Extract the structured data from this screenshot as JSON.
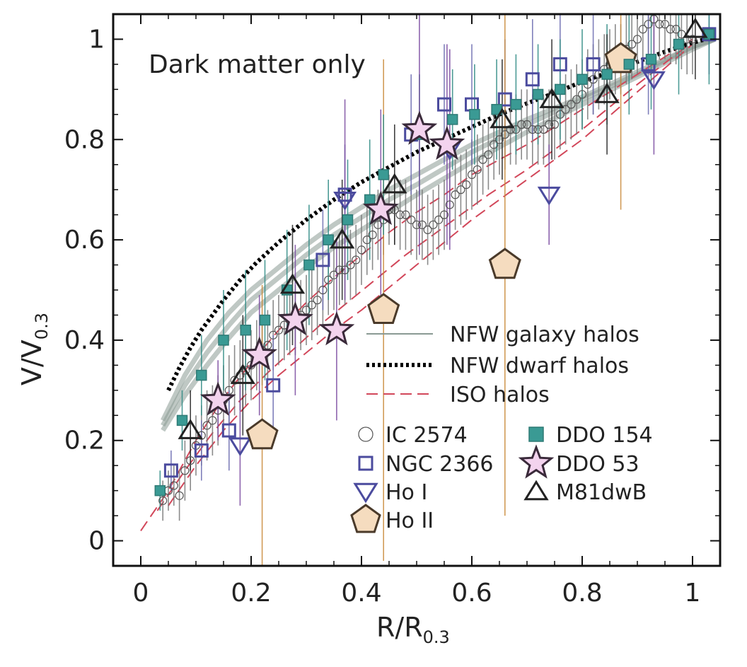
{
  "chart_data": {
    "type": "scatter",
    "title": "",
    "annotation": "Dark matter only",
    "xlabel": "R/R",
    "xlabel_sub": "0.3",
    "ylabel": "V/V",
    "ylabel_sub": "0.3",
    "xlim": [
      -0.05,
      1.05
    ],
    "ylim": [
      -0.05,
      1.05
    ],
    "x_ticks": [
      {
        "value": 0,
        "label": "0"
      },
      {
        "value": 0.2,
        "label": "0.2"
      },
      {
        "value": 0.4,
        "label": "0.4"
      },
      {
        "value": 0.6,
        "label": "0.6"
      },
      {
        "value": 0.8,
        "label": "0.8"
      },
      {
        "value": 1,
        "label": "1"
      }
    ],
    "y_ticks": [
      {
        "value": 0,
        "label": "0"
      },
      {
        "value": 0.2,
        "label": "0.2"
      },
      {
        "value": 0.4,
        "label": "0.4"
      },
      {
        "value": 0.6,
        "label": "0.6"
      },
      {
        "value": 0.8,
        "label": "0.8"
      },
      {
        "value": 1,
        "label": "1"
      }
    ],
    "line_legend": [
      {
        "name": "NFW galaxy halos",
        "style": "solid",
        "color": "#8a9a94"
      },
      {
        "name": "NFW dwarf halos",
        "style": "dotted",
        "color": "#000000"
      },
      {
        "name": "ISO halos",
        "style": "dashed",
        "color": "#d2475a"
      }
    ],
    "model_curves": {
      "nfw_galaxy": [
        {
          "x": [
            0.04,
            0.08,
            0.12,
            0.16,
            0.2,
            0.25,
            0.3,
            0.35,
            0.4,
            0.45,
            0.5,
            0.6,
            0.7,
            0.8,
            0.9,
            1.0,
            1.04
          ],
          "y": [
            0.24,
            0.33,
            0.4,
            0.455,
            0.5,
            0.545,
            0.59,
            0.63,
            0.665,
            0.7,
            0.73,
            0.79,
            0.84,
            0.885,
            0.935,
            0.985,
            1.0
          ]
        },
        {
          "x": [
            0.04,
            0.08,
            0.12,
            0.16,
            0.2,
            0.25,
            0.3,
            0.35,
            0.4,
            0.45,
            0.5,
            0.6,
            0.7,
            0.8,
            0.9,
            1.0,
            1.04
          ],
          "y": [
            0.23,
            0.31,
            0.375,
            0.43,
            0.48,
            0.525,
            0.57,
            0.61,
            0.645,
            0.68,
            0.71,
            0.775,
            0.83,
            0.88,
            0.93,
            0.985,
            1.0
          ]
        },
        {
          "x": [
            0.04,
            0.08,
            0.12,
            0.16,
            0.2,
            0.25,
            0.3,
            0.35,
            0.4,
            0.45,
            0.5,
            0.6,
            0.7,
            0.8,
            0.9,
            1.0,
            1.04
          ],
          "y": [
            0.22,
            0.29,
            0.35,
            0.405,
            0.455,
            0.5,
            0.545,
            0.585,
            0.62,
            0.655,
            0.69,
            0.755,
            0.815,
            0.87,
            0.925,
            0.98,
            1.0
          ]
        }
      ],
      "nfw_dwarf": {
        "x": [
          0.05,
          0.07,
          0.09,
          0.11,
          0.13,
          0.15,
          0.18,
          0.21,
          0.25,
          0.3,
          0.35,
          0.4,
          0.45,
          0.5,
          0.55,
          0.6,
          0.65,
          0.7,
          0.75,
          0.8,
          0.85,
          0.9,
          0.95,
          1.0,
          1.04
        ],
        "y": [
          0.3,
          0.345,
          0.385,
          0.42,
          0.45,
          0.48,
          0.52,
          0.555,
          0.595,
          0.64,
          0.68,
          0.715,
          0.745,
          0.775,
          0.8,
          0.825,
          0.85,
          0.872,
          0.893,
          0.915,
          0.935,
          0.955,
          0.975,
          0.993,
          1.005
        ]
      },
      "iso": [
        {
          "x": [
            0.0,
            0.05,
            0.1,
            0.15,
            0.2,
            0.25,
            0.3,
            0.35,
            0.4,
            0.45,
            0.5,
            0.55,
            0.6,
            0.7,
            0.8,
            0.9,
            1.0
          ],
          "y": [
            0.02,
            0.1,
            0.2,
            0.285,
            0.355,
            0.42,
            0.475,
            0.525,
            0.57,
            0.615,
            0.655,
            0.69,
            0.73,
            0.79,
            0.86,
            0.93,
            1.0
          ]
        },
        {
          "x": [
            0.03,
            0.08,
            0.13,
            0.18,
            0.23,
            0.28,
            0.33,
            0.38,
            0.43,
            0.48,
            0.53,
            0.58,
            0.63,
            0.7,
            0.8,
            0.9,
            1.0
          ],
          "y": [
            0.06,
            0.14,
            0.215,
            0.28,
            0.335,
            0.385,
            0.435,
            0.48,
            0.525,
            0.57,
            0.61,
            0.65,
            0.69,
            0.74,
            0.82,
            0.91,
            0.995
          ]
        },
        {
          "x": [
            0.05,
            0.1,
            0.15,
            0.2,
            0.25,
            0.3,
            0.35,
            0.4,
            0.45,
            0.5,
            0.55,
            0.6,
            0.65,
            0.7,
            0.8,
            0.9,
            1.0
          ],
          "y": [
            0.07,
            0.15,
            0.22,
            0.28,
            0.33,
            0.375,
            0.42,
            0.46,
            0.505,
            0.55,
            0.595,
            0.64,
            0.68,
            0.72,
            0.8,
            0.895,
            0.99
          ]
        }
      ]
    },
    "series": [
      {
        "name": "IC 2574",
        "marker": "circle",
        "color": "#555555",
        "fill": "none",
        "x": [
          0.04,
          0.05,
          0.06,
          0.07,
          0.08,
          0.09,
          0.1,
          0.11,
          0.12,
          0.13,
          0.14,
          0.15,
          0.16,
          0.17,
          0.18,
          0.19,
          0.2,
          0.21,
          0.22,
          0.23,
          0.24,
          0.25,
          0.26,
          0.27,
          0.28,
          0.29,
          0.3,
          0.31,
          0.32,
          0.33,
          0.34,
          0.35,
          0.36,
          0.37,
          0.38,
          0.39,
          0.4,
          0.41,
          0.42,
          0.43,
          0.44,
          0.45,
          0.46,
          0.47,
          0.48,
          0.49,
          0.5,
          0.51,
          0.52,
          0.53,
          0.54,
          0.55,
          0.56,
          0.57,
          0.58,
          0.59,
          0.6,
          0.61,
          0.62,
          0.63,
          0.64,
          0.65,
          0.66,
          0.67,
          0.68,
          0.69,
          0.7,
          0.71,
          0.72,
          0.73,
          0.74,
          0.75,
          0.76,
          0.77,
          0.78,
          0.79,
          0.8,
          0.81,
          0.82,
          0.83,
          0.84,
          0.85,
          0.86,
          0.87,
          0.88,
          0.89,
          0.9,
          0.91,
          0.92,
          0.93,
          0.94,
          0.95,
          0.96,
          0.97,
          0.98,
          0.99,
          1.0
        ],
        "y": [
          0.08,
          0.1,
          0.11,
          0.09,
          0.14,
          0.16,
          0.19,
          0.21,
          0.23,
          0.24,
          0.26,
          0.28,
          0.3,
          0.32,
          0.33,
          0.34,
          0.35,
          0.37,
          0.38,
          0.39,
          0.41,
          0.42,
          0.43,
          0.44,
          0.44,
          0.45,
          0.46,
          0.47,
          0.48,
          0.5,
          0.52,
          0.53,
          0.54,
          0.54,
          0.55,
          0.56,
          0.58,
          0.6,
          0.61,
          0.63,
          0.64,
          0.66,
          0.66,
          0.65,
          0.65,
          0.64,
          0.63,
          0.63,
          0.62,
          0.63,
          0.64,
          0.65,
          0.67,
          0.69,
          0.7,
          0.71,
          0.73,
          0.74,
          0.76,
          0.77,
          0.79,
          0.8,
          0.81,
          0.82,
          0.82,
          0.83,
          0.83,
          0.82,
          0.82,
          0.82,
          0.83,
          0.83,
          0.85,
          0.86,
          0.87,
          0.88,
          0.89,
          0.91,
          0.92,
          0.93,
          0.94,
          0.95,
          0.96,
          0.96,
          0.98,
          0.99,
          1.0,
          1.02,
          1.03,
          1.04,
          1.03,
          1.03,
          1.02,
          1.02,
          1.01,
          1.0,
          1.0
        ],
        "err": [
          0.04,
          0.04,
          0.04,
          0.05,
          0.06,
          0.06,
          0.06,
          0.06,
          0.07,
          0.07,
          0.07,
          0.07,
          0.07,
          0.07,
          0.07,
          0.07,
          0.07,
          0.07,
          0.07,
          0.07,
          0.07,
          0.07,
          0.07,
          0.07,
          0.07,
          0.07,
          0.07,
          0.07,
          0.07,
          0.07,
          0.07,
          0.07,
          0.07,
          0.07,
          0.07,
          0.07,
          0.07,
          0.07,
          0.07,
          0.07,
          0.07,
          0.07,
          0.07,
          0.07,
          0.07,
          0.07,
          0.07,
          0.07,
          0.07,
          0.07,
          0.07,
          0.07,
          0.07,
          0.07,
          0.07,
          0.07,
          0.07,
          0.07,
          0.07,
          0.07,
          0.07,
          0.07,
          0.07,
          0.07,
          0.07,
          0.07,
          0.07,
          0.07,
          0.07,
          0.07,
          0.07,
          0.07,
          0.07,
          0.07,
          0.07,
          0.07,
          0.07,
          0.07,
          0.07,
          0.07,
          0.07,
          0.07,
          0.07,
          0.07,
          0.07,
          0.07,
          0.07,
          0.07,
          0.07,
          0.07,
          0.07,
          0.07,
          0.07,
          0.07,
          0.07,
          0.07,
          0.07
        ]
      },
      {
        "name": "NGC 2366",
        "marker": "square-open",
        "color": "#4b4b9e",
        "fill": "none",
        "x": [
          0.055,
          0.11,
          0.16,
          0.24,
          0.33,
          0.37,
          0.49,
          0.55,
          0.6,
          0.66,
          0.71,
          0.76,
          0.82,
          0.92,
          1.03
        ],
        "y": [
          0.14,
          0.18,
          0.22,
          0.31,
          0.56,
          0.69,
          0.81,
          0.87,
          0.87,
          0.88,
          0.92,
          0.95,
          0.95,
          0.95,
          1.01
        ],
        "err": [
          0.04,
          0.06,
          0.08,
          0.1,
          0.1,
          0.1,
          0.12,
          0.12,
          0.12,
          0.12,
          0.12,
          0.1,
          0.1,
          0.1,
          0.08
        ]
      },
      {
        "name": "Ho I",
        "marker": "triangle-down",
        "color": "#4b4b9e",
        "fill": "none",
        "x": [
          0.18,
          0.37,
          0.56,
          0.74,
          0.93
        ],
        "y": [
          0.19,
          0.68,
          0.78,
          0.69,
          0.92
        ],
        "err": [
          0.12,
          0.2,
          0.2,
          0.1,
          0.15
        ]
      },
      {
        "name": "Ho II",
        "marker": "pentagon",
        "color": "#4a3a2a",
        "fill": "#f5dcbf",
        "x": [
          0.22,
          0.44,
          0.66,
          0.87
        ],
        "y": [
          0.21,
          0.46,
          0.55,
          0.96
        ],
        "err": [
          0.3,
          0.5,
          0.5,
          0.3
        ]
      },
      {
        "name": "DDO 154",
        "marker": "square-filled",
        "color": "#2f7a75",
        "fill": "#3a9a94",
        "x": [
          0.035,
          0.075,
          0.11,
          0.15,
          0.19,
          0.225,
          0.265,
          0.305,
          0.34,
          0.375,
          0.415,
          0.44,
          0.505,
          0.565,
          0.605,
          0.645,
          0.68,
          0.72,
          0.76,
          0.8,
          0.845,
          0.885,
          0.925,
          0.975,
          1.03
        ],
        "y": [
          0.1,
          0.24,
          0.33,
          0.4,
          0.42,
          0.44,
          0.5,
          0.55,
          0.6,
          0.64,
          0.68,
          0.73,
          0.81,
          0.84,
          0.85,
          0.86,
          0.87,
          0.89,
          0.9,
          0.92,
          0.93,
          0.95,
          0.96,
          0.99,
          1.01
        ],
        "err": [
          0.04,
          0.06,
          0.08,
          0.1,
          0.12,
          0.12,
          0.12,
          0.12,
          0.12,
          0.12,
          0.12,
          0.12,
          0.12,
          0.1,
          0.1,
          0.1,
          0.1,
          0.1,
          0.1,
          0.1,
          0.1,
          0.1,
          0.1,
          0.1,
          0.1
        ]
      },
      {
        "name": "DDO 53",
        "marker": "star",
        "color": "#3a2a3a",
        "fill": "#f3d3ee",
        "x": [
          0.14,
          0.215,
          0.28,
          0.355,
          0.435,
          0.505,
          0.555
        ],
        "y": [
          0.28,
          0.37,
          0.44,
          0.42,
          0.66,
          0.82,
          0.79
        ],
        "err": [
          0.08,
          0.12,
          0.15,
          0.18,
          0.2,
          0.25,
          0.2
        ]
      },
      {
        "name": "M81dwB",
        "marker": "triangle-up",
        "color": "#222222",
        "fill": "none",
        "x": [
          0.09,
          0.185,
          0.275,
          0.365,
          0.46,
          0.655,
          0.745,
          0.845,
          1.005
        ],
        "y": [
          0.22,
          0.33,
          0.51,
          0.6,
          0.71,
          0.84,
          0.88,
          0.89,
          1.02
        ],
        "err": [
          0.08,
          0.12,
          0.12,
          0.12,
          0.12,
          0.12,
          0.12,
          0.12,
          0.1
        ]
      }
    ]
  }
}
